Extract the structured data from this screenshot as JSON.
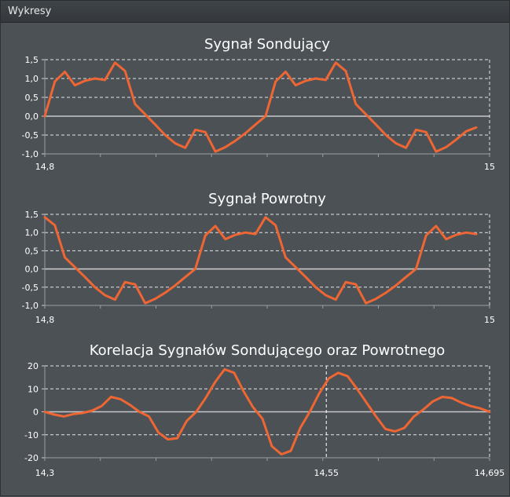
{
  "window": {
    "title": "Wykresy"
  },
  "colors": {
    "background": "#4c5156",
    "series": "#ee6633",
    "zero_line": "#c8c8c8",
    "grid": "#ffffff"
  },
  "chart_data": [
    {
      "type": "line",
      "title": "Sygnał Sondujący",
      "xlabel": "",
      "ylabel": "",
      "xlim": [
        14.8,
        15.0
      ],
      "ylim": [
        -1.0,
        1.5
      ],
      "x_tick_labels": [
        "14,8",
        "15"
      ],
      "y_tick_labels": [
        "1,5",
        "1,0",
        "0,5",
        "0,0",
        "-0,5",
        "-1,0"
      ],
      "grid": true,
      "series": [
        {
          "values": [
            0.0,
            0.92,
            1.18,
            0.82,
            0.94,
            1.0,
            0.96,
            1.42,
            1.2,
            0.32,
            0.05,
            -0.22,
            -0.5,
            -0.72,
            -0.84,
            -0.36,
            -0.42,
            -0.94,
            -0.82,
            -0.65,
            -0.45,
            -0.22,
            0.0,
            0.92,
            1.18,
            0.82,
            0.94,
            1.0,
            0.96,
            1.42,
            1.2,
            0.32,
            0.05,
            -0.22,
            -0.5,
            -0.72,
            -0.84,
            -0.36,
            -0.42,
            -0.94,
            -0.82,
            -0.62,
            -0.4,
            -0.3
          ]
        }
      ]
    },
    {
      "type": "line",
      "title": "Sygnał Powrotny",
      "xlabel": "",
      "ylabel": "",
      "xlim": [
        14.8,
        15.0
      ],
      "ylim": [
        -1.0,
        1.5
      ],
      "x_tick_labels": [
        "14,8",
        "15"
      ],
      "y_tick_labels": [
        "1,5",
        "1,0",
        "0,5",
        "0,0",
        "-0,5",
        "-1,0"
      ],
      "grid": true,
      "series": [
        {
          "values": [
            1.42,
            1.2,
            0.32,
            0.05,
            -0.22,
            -0.5,
            -0.72,
            -0.84,
            -0.36,
            -0.42,
            -0.94,
            -0.82,
            -0.65,
            -0.45,
            -0.22,
            0.0,
            0.92,
            1.18,
            0.82,
            0.94,
            1.0,
            0.96,
            1.42,
            1.2,
            0.32,
            0.05,
            -0.22,
            -0.5,
            -0.72,
            -0.84,
            -0.36,
            -0.42,
            -0.94,
            -0.82,
            -0.65,
            -0.45,
            -0.22,
            0.0,
            0.92,
            1.18,
            0.82,
            0.94,
            1.0,
            0.96
          ]
        }
      ]
    },
    {
      "type": "line",
      "title": "Korelacja Sygnałów Sondującego oraz Powrotnego",
      "xlabel": "",
      "ylabel": "",
      "xlim": [
        14.3,
        14.695
      ],
      "ylim": [
        -20,
        20
      ],
      "x_tick_labels": [
        "14,3",
        "14,55",
        "14,695"
      ],
      "x_marker": 14.55,
      "y_tick_labels": [
        "20",
        "10",
        "0",
        "-10",
        "-20"
      ],
      "grid": true,
      "series": [
        {
          "values": [
            0,
            -1.2,
            -2,
            -1,
            -0.5,
            0.5,
            2.5,
            6.5,
            5.5,
            3,
            0,
            -2,
            -9,
            -12,
            -11.5,
            -4,
            0,
            6,
            13,
            18.5,
            17,
            9,
            2,
            -3,
            -15,
            -18.5,
            -17,
            -7,
            0,
            8,
            14.5,
            17,
            15.5,
            10,
            4,
            -2,
            -7.5,
            -8.5,
            -7,
            -2,
            1,
            4.5,
            6.5,
            6,
            4,
            2.5,
            1.5,
            0
          ]
        }
      ]
    }
  ]
}
